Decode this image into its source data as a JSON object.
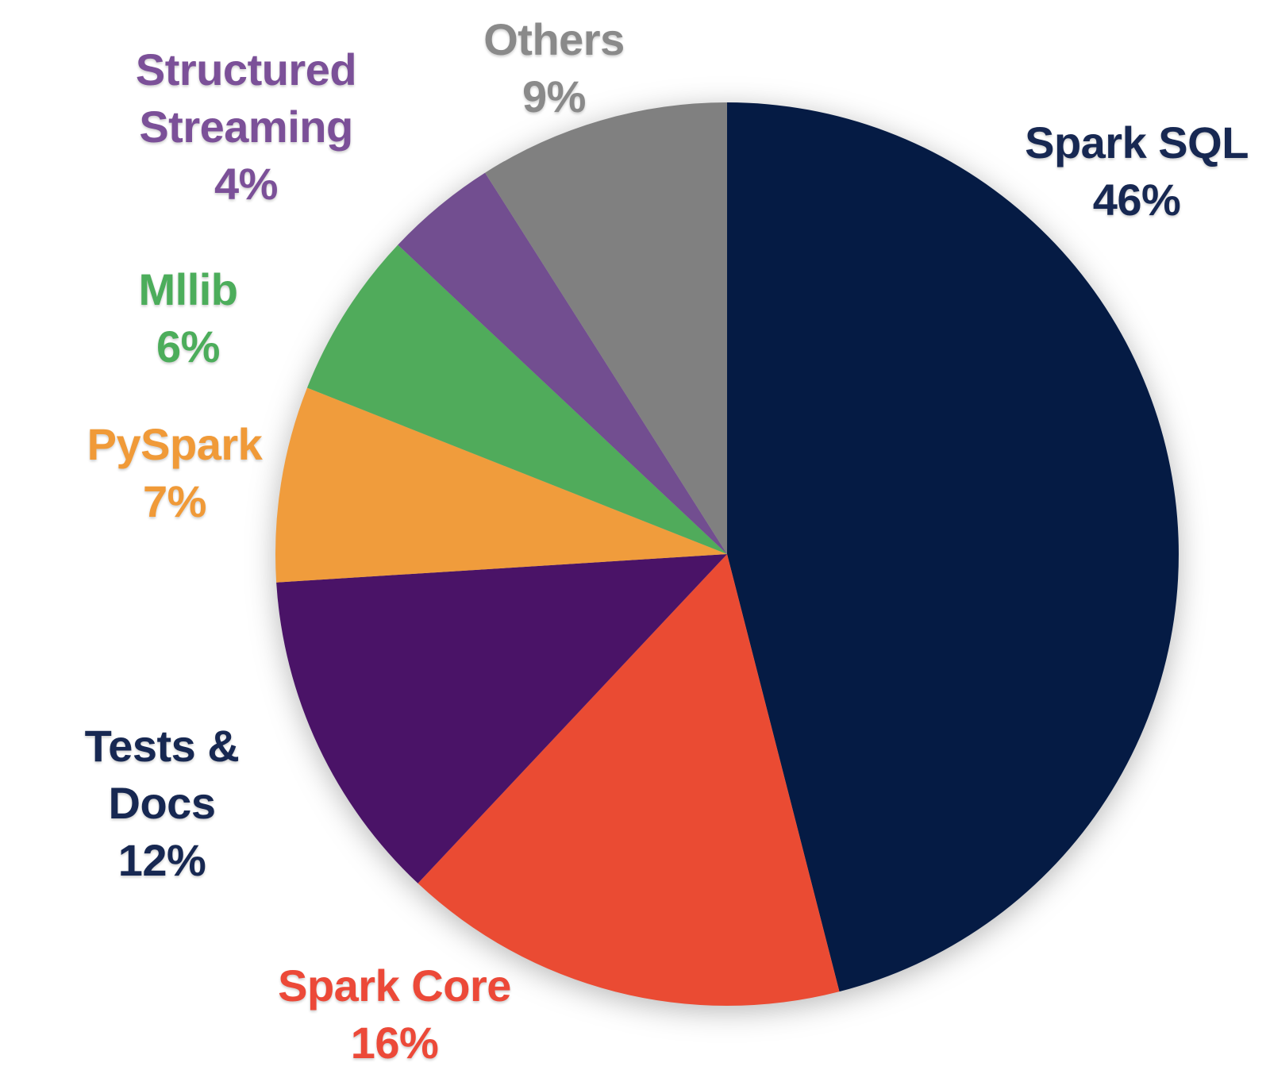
{
  "chart_data": {
    "type": "pie",
    "title": "",
    "unit": "%",
    "start_angle_deg": 0,
    "direction": "clockwise",
    "legend_position": "around-slices",
    "background_color": "#ffffff",
    "categories": [
      "Spark SQL",
      "Spark Core",
      "Tests & Docs",
      "PySpark",
      "Mllib",
      "Structured Streaming",
      "Others"
    ],
    "values": [
      46,
      16,
      12,
      7,
      6,
      4,
      9
    ],
    "slices": [
      {
        "key": "spark-sql",
        "label": "Spark SQL",
        "value": 46,
        "color": "#051B44",
        "label_color": "#172852",
        "label_lines": [
          "Spark SQL",
          "46%"
        ]
      },
      {
        "key": "spark-core",
        "label": "Spark Core",
        "value": 16,
        "color": "#EA4B33",
        "label_color": "#EC4938",
        "label_lines": [
          "Spark Core",
          "16%"
        ]
      },
      {
        "key": "tests-docs",
        "label": "Tests & Docs",
        "value": 12,
        "color": "#4A1367",
        "label_color": "#172852",
        "label_lines": [
          "Tests &",
          "Docs",
          "12%"
        ]
      },
      {
        "key": "pyspark",
        "label": "PySpark",
        "value": 7,
        "color": "#F09C3C",
        "label_color": "#F09A38",
        "label_lines": [
          "PySpark",
          "7%"
        ]
      },
      {
        "key": "mllib",
        "label": "Mllib",
        "value": 6,
        "color": "#50AB5B",
        "label_color": "#4CAD5B",
        "label_lines": [
          "Mllib",
          "6%"
        ]
      },
      {
        "key": "structured-streaming",
        "label": "Structured Streaming",
        "value": 4,
        "color": "#724E90",
        "label_color": "#7B5098",
        "label_lines": [
          "Structured",
          "Streaming",
          "4%"
        ]
      },
      {
        "key": "others",
        "label": "Others",
        "value": 9,
        "color": "#808080",
        "label_color": "#8A8A8A",
        "label_lines": [
          "Others",
          "9%"
        ]
      }
    ]
  }
}
